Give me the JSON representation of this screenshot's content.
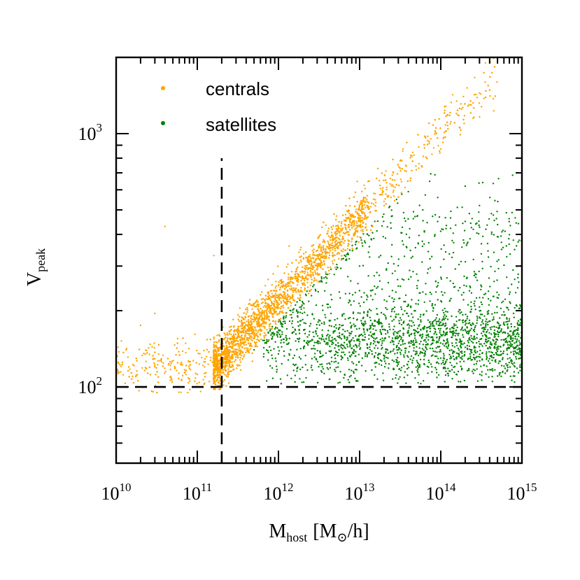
{
  "chart_data": {
    "type": "scatter",
    "title": "",
    "xlabel": {
      "main": "M",
      "sub": "host",
      "unit": "[M",
      "unit_sub": "⊙",
      "unit_end": "/h]"
    },
    "ylabel": {
      "main": "V",
      "sub": "peak"
    },
    "xscale": "log",
    "yscale": "log",
    "xlim": [
      10000000000.0,
      1000000000000000.0
    ],
    "ylim": [
      50,
      2000
    ],
    "x_ticks": [
      {
        "base": "10",
        "exp": "10"
      },
      {
        "base": "10",
        "exp": "11"
      },
      {
        "base": "10",
        "exp": "12"
      },
      {
        "base": "10",
        "exp": "13"
      },
      {
        "base": "10",
        "exp": "14"
      },
      {
        "base": "10",
        "exp": "15"
      }
    ],
    "y_ticks": [
      {
        "base": "10",
        "exp": "2"
      },
      {
        "base": "10",
        "exp": "3"
      }
    ],
    "reference_lines": [
      {
        "orientation": "vertical",
        "x": 200000000000.0,
        "y_to": 800,
        "style": "dashed"
      },
      {
        "orientation": "horizontal",
        "y": 100,
        "style": "dashed"
      }
    ],
    "legend_position": "top-left",
    "series": [
      {
        "name": "centrals",
        "color": "#FFA500",
        "approx_count": 3500,
        "relation": "V_peak ≈ 220·(M/1e12)^0.33 with ~12% scatter, low-mass tail toward 1e10",
        "sample_points": [
          [
            30000000000.0,
            120
          ],
          [
            100000000000.0,
            112
          ],
          [
            200000000000.0,
            122
          ],
          [
            300000000000.0,
            140
          ],
          [
            500000000000.0,
            160
          ],
          [
            1000000000000.0,
            205
          ],
          [
            2000000000000.0,
            255
          ],
          [
            3000000000000.0,
            290
          ],
          [
            5000000000000.0,
            345
          ],
          [
            10000000000000.0,
            430
          ],
          [
            20000000000000.0,
            540
          ],
          [
            50000000000000.0,
            720
          ],
          [
            100000000000000.0,
            870
          ],
          [
            250000000000000.0,
            1150
          ],
          [
            450000000000000.0,
            1230
          ],
          [
            40000000000.0,
            430
          ],
          [
            160000000000.0,
            330
          ],
          [
            30000000000.0,
            195
          ],
          [
            20000000000.0,
            175
          ]
        ]
      },
      {
        "name": "satellites",
        "color": "#008000",
        "approx_count": 2200,
        "relation": "V_peak ~ 110–600 for host masses 3e11–1e15, concentrated near 120–200",
        "sample_points": [
          [
            500000000000.0,
            140
          ],
          [
            1000000000000.0,
            135
          ],
          [
            3000000000000.0,
            150
          ],
          [
            10000000000000.0,
            160
          ],
          [
            30000000000000.0,
            140
          ],
          [
            100000000000000.0,
            180
          ],
          [
            200000000000000.0,
            450
          ],
          [
            500000000000000.0,
            180
          ],
          [
            10000000000000.0,
            300
          ],
          [
            30000000000000.0,
            250
          ],
          [
            100000000000000.0,
            130
          ],
          [
            60000000000000.0,
            500
          ],
          [
            200000000000000.0,
            620
          ],
          [
            300000000000000.0,
            520
          ]
        ]
      }
    ]
  }
}
